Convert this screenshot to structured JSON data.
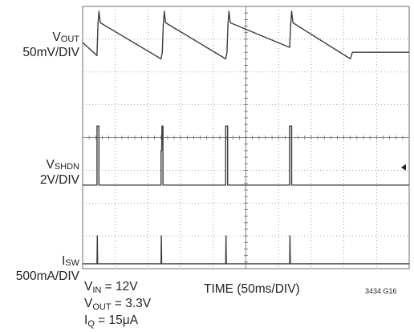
{
  "chart_data": {
    "type": "line",
    "title": "",
    "xlabel": "TIME (50ms/DIV)",
    "x_divisions": 10,
    "y_divisions": 8,
    "x_unit": "ms",
    "ms_per_div": 50,
    "grid": true,
    "figure_id": "3434 G16",
    "traces": [
      {
        "id": "vout",
        "name_main": "V",
        "name_sub": "OUT",
        "scale": "50mV/DIV",
        "color": "#3d3d3d",
        "x": [
          0,
          22,
          23.5,
          25,
          27,
          120,
          122,
          123.5,
          125,
          127,
          219,
          221,
          222.5,
          224,
          226,
          317,
          318.5,
          320,
          322,
          410,
          413,
          500
        ],
        "y": [
          6.9,
          6.5,
          7.45,
          7.85,
          7.5,
          6.4,
          6.6,
          7.45,
          7.85,
          7.5,
          6.4,
          6.6,
          7.45,
          7.85,
          7.5,
          6.75,
          7.45,
          7.85,
          7.5,
          6.4,
          6.6,
          6.6
        ]
      },
      {
        "id": "vshdn",
        "name_main": "V",
        "name_sub": "SHDN",
        "scale": "2V/DIV",
        "color": "#3d3d3d",
        "x": [
          0,
          22,
          22,
          25,
          25,
          120,
          120,
          121,
          121.5,
          123,
          123,
          219,
          219,
          222,
          222,
          317,
          317,
          320,
          320,
          500
        ],
        "y": [
          2.55,
          2.55,
          4.35,
          4.35,
          2.55,
          2.55,
          3.6,
          3.6,
          4.35,
          4.35,
          2.55,
          2.55,
          4.35,
          4.35,
          2.55,
          2.55,
          4.35,
          4.35,
          2.55,
          2.55
        ]
      },
      {
        "id": "isw",
        "name_main": "I",
        "name_sub": "SW",
        "scale": "500mA/DIV",
        "color": "#3d3d3d",
        "x": [
          0,
          22,
          22.5,
          23,
          120,
          120.5,
          121,
          219,
          219.5,
          220,
          317,
          317.5,
          318,
          500
        ],
        "y": [
          0.15,
          0.15,
          1.0,
          0.15,
          0.15,
          1.0,
          0.15,
          0.15,
          1.0,
          0.15,
          0.15,
          1.0,
          0.15,
          0.15
        ]
      }
    ],
    "conditions": [
      {
        "main": "V",
        "sub": "IN",
        "rest": " = 12V"
      },
      {
        "main": "V",
        "sub": "OUT",
        "rest": " = 3.3V"
      },
      {
        "main": "I",
        "sub": "Q",
        "rest": " = 15μA"
      }
    ],
    "ground_marker_trace": "vshdn",
    "ground_marker_level": 2.55
  }
}
